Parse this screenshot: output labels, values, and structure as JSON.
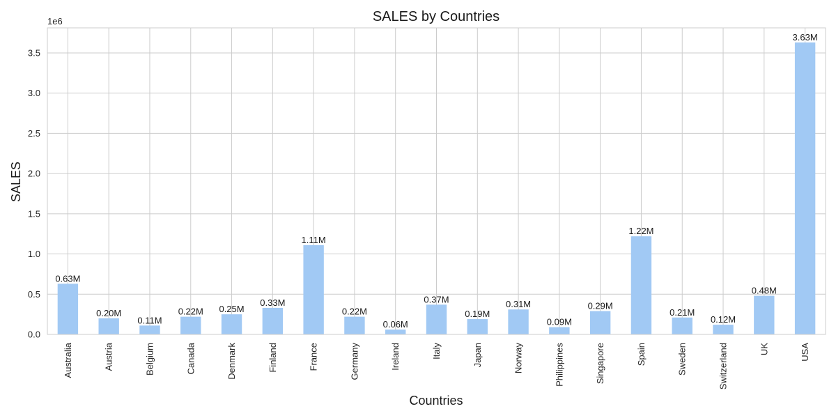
{
  "chart_data": {
    "type": "bar",
    "title": "SALES by Countries",
    "xlabel": "Countries",
    "ylabel": "SALES",
    "offset_text": "1e6",
    "categories": [
      "Australia",
      "Austria",
      "Belgium",
      "Canada",
      "Denmark",
      "Finland",
      "France",
      "Germany",
      "Ireland",
      "Italy",
      "Japan",
      "Norway",
      "Philippines",
      "Singapore",
      "Spain",
      "Sweden",
      "Switzerland",
      "UK",
      "USA"
    ],
    "values": [
      630000,
      200000,
      110000,
      220000,
      250000,
      330000,
      1110000,
      220000,
      60000,
      370000,
      190000,
      310000,
      90000,
      290000,
      1220000,
      210000,
      120000,
      480000,
      3630000
    ],
    "value_labels": [
      "0.63M",
      "0.20M",
      "0.11M",
      "0.22M",
      "0.25M",
      "0.33M",
      "1.11M",
      "0.22M",
      "0.06M",
      "0.37M",
      "0.19M",
      "0.31M",
      "0.09M",
      "0.29M",
      "1.22M",
      "0.21M",
      "0.12M",
      "0.48M",
      "3.63M"
    ],
    "yticks": [
      0,
      500000,
      1000000,
      1500000,
      2000000,
      2500000,
      3000000,
      3500000
    ],
    "ytick_labels": [
      "0.0",
      "0.5",
      "1.0",
      "1.5",
      "2.0",
      "2.5",
      "3.0",
      "3.5"
    ],
    "ylim": [
      0,
      3811500
    ],
    "grid": true,
    "colors": {
      "bar": "#a1c9f4",
      "grid": "#cccccc",
      "text": "#262626"
    }
  }
}
